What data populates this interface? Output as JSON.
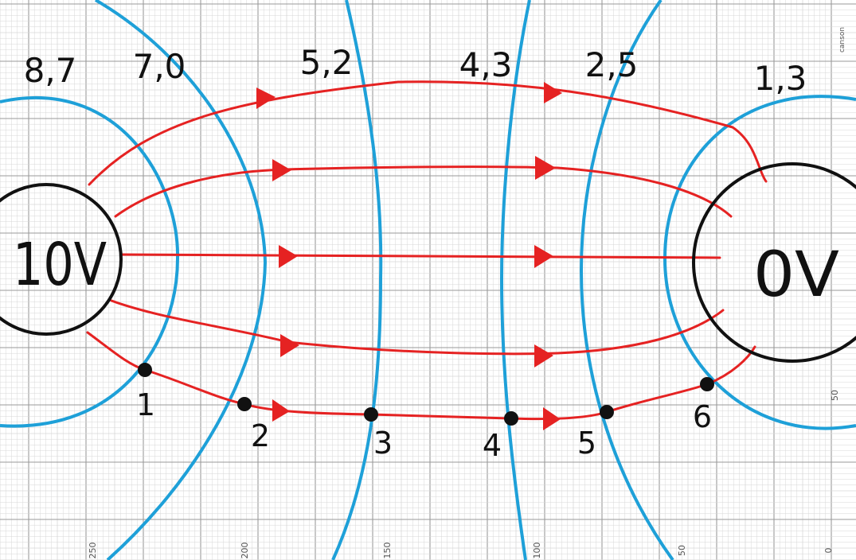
{
  "electrodes": {
    "left": {
      "label": "10V"
    },
    "right": {
      "label": "0V"
    }
  },
  "equipotential_labels": [
    "8,7",
    "7,0",
    "5,2",
    "4,3",
    "2,5",
    "1,3"
  ],
  "points": [
    "1",
    "2",
    "3",
    "4",
    "5",
    "6"
  ],
  "paper": {
    "bottom_scale": [
      "250",
      "200",
      "150",
      "100",
      "50",
      "0"
    ],
    "right_scale": [
      "50"
    ],
    "brand": "canson"
  },
  "colors": {
    "equipotential": "#1ea0d8",
    "field_line": "#e52222",
    "electrode": "#111111",
    "grid_fine": "#d7d7d7",
    "grid_major": "#9a9a9a"
  }
}
